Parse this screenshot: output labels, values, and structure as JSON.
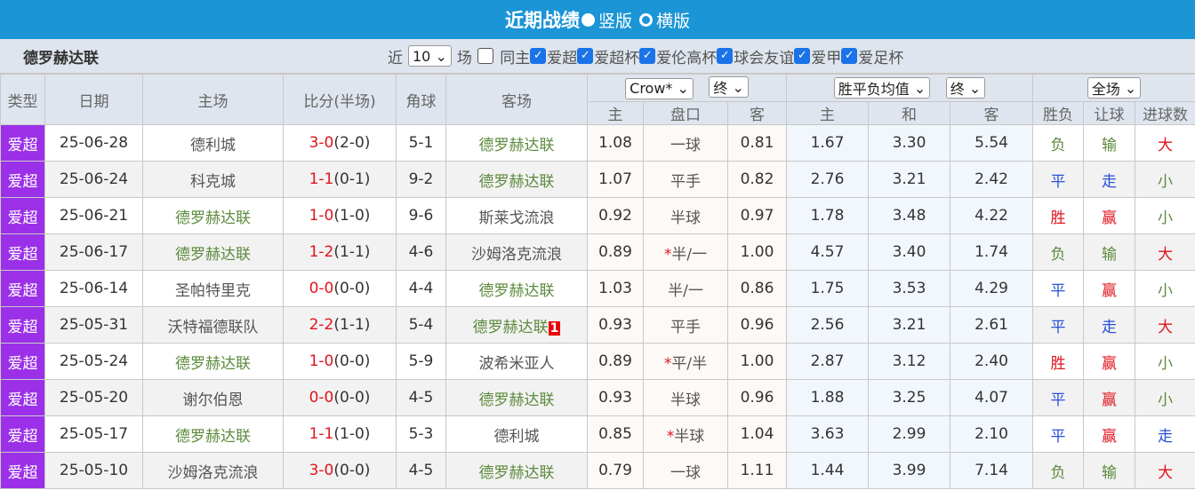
{
  "header": {
    "title": "近期战绩",
    "view_vertical": "竖版",
    "view_horizontal": "横版"
  },
  "filter": {
    "team": "德罗赫达联",
    "prefix": "近",
    "count": "10",
    "suffix": "场",
    "same_home": "同主",
    "leagues": [
      "爱超",
      "爱超杯",
      "爱伦高杯",
      "球会友谊",
      "爱甲",
      "爱足杯"
    ]
  },
  "columns": {
    "type": "类型",
    "date": "日期",
    "home": "主场",
    "score": "比分(半场)",
    "corner": "角球",
    "away": "客场",
    "company": "Crow*",
    "odds_stage": "终",
    "euro": "胜平负均值",
    "euro_stage": "终",
    "scope": "全场",
    "ah_home": "主",
    "ah_line": "盘口",
    "ah_away": "客",
    "eu_home": "主",
    "eu_draw": "和",
    "eu_away": "客",
    "result": "胜负",
    "handicap": "让球",
    "goals": "进球数"
  },
  "colors": {
    "header": "#1b95d6",
    "type_badge": "#9b30e8",
    "team": "#5c8a3c",
    "win": "#e0141e",
    "draw": "#2a4fd8",
    "loss": "#5c8a3c"
  },
  "rows": [
    {
      "type": "爱超",
      "date": "25-06-28",
      "home": "德利城",
      "home_hl": false,
      "score": "3-0",
      "half": "(2-0)",
      "corner": "5-1",
      "away": "德罗赫达联",
      "away_hl": true,
      "badge": "",
      "h": "1.08",
      "line": "一球",
      "star": false,
      "a": "0.81",
      "eh": "1.67",
      "ed": "3.30",
      "ea": "5.54",
      "res": "负",
      "hcp": "输",
      "goals": "大"
    },
    {
      "type": "爱超",
      "date": "25-06-24",
      "home": "科克城",
      "home_hl": false,
      "score": "1-1",
      "half": "(0-1)",
      "corner": "9-2",
      "away": "德罗赫达联",
      "away_hl": true,
      "badge": "",
      "h": "1.07",
      "line": "平手",
      "star": false,
      "a": "0.82",
      "eh": "2.76",
      "ed": "3.21",
      "ea": "2.42",
      "res": "平",
      "hcp": "走",
      "goals": "小"
    },
    {
      "type": "爱超",
      "date": "25-06-21",
      "home": "德罗赫达联",
      "home_hl": true,
      "score": "1-0",
      "half": "(1-0)",
      "corner": "9-6",
      "away": "斯莱戈流浪",
      "away_hl": false,
      "badge": "",
      "h": "0.92",
      "line": "半球",
      "star": false,
      "a": "0.97",
      "eh": "1.78",
      "ed": "3.48",
      "ea": "4.22",
      "res": "胜",
      "hcp": "赢",
      "goals": "小"
    },
    {
      "type": "爱超",
      "date": "25-06-17",
      "home": "德罗赫达联",
      "home_hl": true,
      "score": "1-2",
      "half": "(1-1)",
      "corner": "4-6",
      "away": "沙姆洛克流浪",
      "away_hl": false,
      "badge": "",
      "h": "0.89",
      "line": "半/一",
      "star": true,
      "a": "1.00",
      "eh": "4.57",
      "ed": "3.40",
      "ea": "1.74",
      "res": "负",
      "hcp": "输",
      "goals": "大"
    },
    {
      "type": "爱超",
      "date": "25-06-14",
      "home": "圣帕特里克",
      "home_hl": false,
      "score": "0-0",
      "half": "(0-0)",
      "corner": "4-4",
      "away": "德罗赫达联",
      "away_hl": true,
      "badge": "",
      "h": "1.03",
      "line": "半/一",
      "star": false,
      "a": "0.86",
      "eh": "1.75",
      "ed": "3.53",
      "ea": "4.29",
      "res": "平",
      "hcp": "赢",
      "goals": "小"
    },
    {
      "type": "爱超",
      "date": "25-05-31",
      "home": "沃特福德联队",
      "home_hl": false,
      "score": "2-2",
      "half": "(1-1)",
      "corner": "5-4",
      "away": "德罗赫达联",
      "away_hl": true,
      "badge": "1",
      "h": "0.93",
      "line": "平手",
      "star": false,
      "a": "0.96",
      "eh": "2.56",
      "ed": "3.21",
      "ea": "2.61",
      "res": "平",
      "hcp": "走",
      "goals": "大"
    },
    {
      "type": "爱超",
      "date": "25-05-24",
      "home": "德罗赫达联",
      "home_hl": true,
      "score": "1-0",
      "half": "(0-0)",
      "corner": "5-9",
      "away": "波希米亚人",
      "away_hl": false,
      "badge": "",
      "h": "0.89",
      "line": "平/半",
      "star": true,
      "a": "1.00",
      "eh": "2.87",
      "ed": "3.12",
      "ea": "2.40",
      "res": "胜",
      "hcp": "赢",
      "goals": "小"
    },
    {
      "type": "爱超",
      "date": "25-05-20",
      "home": "谢尔伯恩",
      "home_hl": false,
      "score": "0-0",
      "half": "(0-0)",
      "corner": "4-5",
      "away": "德罗赫达联",
      "away_hl": true,
      "badge": "",
      "h": "0.93",
      "line": "半球",
      "star": false,
      "a": "0.96",
      "eh": "1.88",
      "ed": "3.25",
      "ea": "4.07",
      "res": "平",
      "hcp": "赢",
      "goals": "小"
    },
    {
      "type": "爱超",
      "date": "25-05-17",
      "home": "德罗赫达联",
      "home_hl": true,
      "score": "1-1",
      "half": "(1-0)",
      "corner": "5-3",
      "away": "德利城",
      "away_hl": false,
      "badge": "",
      "h": "0.85",
      "line": "半球",
      "star": true,
      "a": "1.04",
      "eh": "3.63",
      "ed": "2.99",
      "ea": "2.10",
      "res": "平",
      "hcp": "赢",
      "goals": "走"
    },
    {
      "type": "爱超",
      "date": "25-05-10",
      "home": "沙姆洛克流浪",
      "home_hl": false,
      "score": "3-0",
      "half": "(0-0)",
      "corner": "4-5",
      "away": "德罗赫达联",
      "away_hl": true,
      "badge": "",
      "h": "0.79",
      "line": "一球",
      "star": false,
      "a": "1.11",
      "eh": "1.44",
      "ed": "3.99",
      "ea": "7.14",
      "res": "负",
      "hcp": "输",
      "goals": "大"
    }
  ]
}
